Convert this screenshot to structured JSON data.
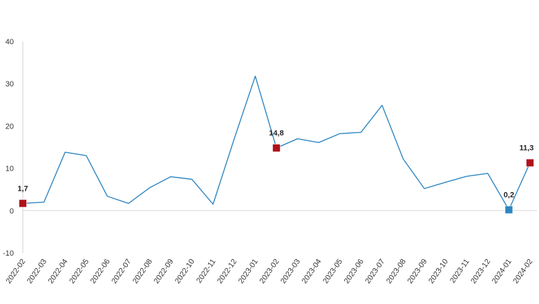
{
  "chart_data": {
    "type": "line",
    "title": "",
    "xlabel": "",
    "ylabel": "",
    "ylim": [
      -10,
      40
    ],
    "yticks": [
      -10,
      0,
      10,
      20,
      30,
      40
    ],
    "grid": false,
    "categories": [
      "2022-02",
      "2022-03",
      "2022-04",
      "2022-05",
      "2022-06",
      "2022-07",
      "2022-08",
      "2022-09",
      "2022-10",
      "2022-11",
      "2022-12",
      "2023-01",
      "2023-02",
      "2023-03",
      "2023-04",
      "2023-05",
      "2023-06",
      "2023-07",
      "2023-08",
      "2023-09",
      "2023-10",
      "2023-11",
      "2023-12",
      "2024-01",
      "2024-02"
    ],
    "series": [
      {
        "name": "",
        "color": "#2e86c1",
        "values": [
          1.7,
          2.0,
          13.8,
          13.0,
          3.4,
          1.7,
          5.4,
          8.0,
          7.4,
          1.5,
          16.9,
          31.8,
          14.8,
          17.0,
          16.1,
          18.2,
          18.5,
          24.9,
          12.2,
          5.2,
          6.7,
          8.1,
          8.8,
          0.2,
          11.3
        ]
      }
    ],
    "highlights": [
      {
        "category": "2022-02",
        "value": 1.7,
        "label": "1,7",
        "color": "#b0121b"
      },
      {
        "category": "2023-02",
        "value": 14.8,
        "label": "14,8",
        "color": "#b0121b"
      },
      {
        "category": "2024-01",
        "value": 0.2,
        "label": "0,2",
        "color": "#2e86c1"
      },
      {
        "category": "2024-02",
        "value": 11.3,
        "label": "11,3",
        "color": "#b0121b"
      }
    ]
  }
}
